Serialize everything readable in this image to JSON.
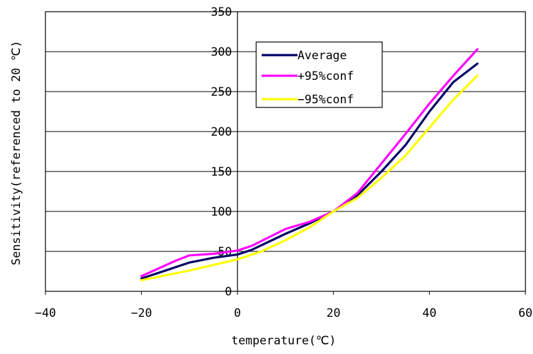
{
  "chart_data": {
    "type": "line",
    "title": "",
    "xlabel": "temperature(℃)",
    "ylabel": "Sensitivity(referenced to 20 ℃)",
    "xlim": [
      -40,
      60
    ],
    "ylim": [
      0,
      350
    ],
    "x_ticks": [
      -40,
      -20,
      0,
      20,
      40,
      60
    ],
    "y_ticks": [
      0,
      50,
      100,
      150,
      200,
      250,
      300,
      350
    ],
    "x_tick_labels": [
      "−40",
      "−20",
      "0",
      "20",
      "40",
      "60"
    ],
    "y_tick_labels": [
      "0",
      "50",
      "100",
      "150",
      "200",
      "250",
      "300",
      "350"
    ],
    "grid": "horizontal",
    "legend_position": "top-center",
    "series": [
      {
        "name": "Average",
        "color": "#000066",
        "x": [
          -20,
          -15,
          -10,
          -5,
          0,
          3,
          10,
          15,
          20,
          25,
          30,
          35,
          40,
          45,
          50
        ],
        "y": [
          16,
          26,
          36,
          42,
          46,
          52,
          72,
          85,
          100,
          120,
          150,
          183,
          225,
          262,
          285
        ]
      },
      {
        "name": "+95%conf",
        "color": "#ff00ff",
        "x": [
          -20,
          -13,
          -10,
          -5,
          0,
          3,
          10,
          15,
          20,
          25,
          30,
          35,
          40,
          45,
          50
        ],
        "y": [
          19,
          38,
          45,
          47,
          51,
          57,
          78,
          87,
          100,
          123,
          160,
          197,
          235,
          270,
          303
        ]
      },
      {
        "name": "−95%conf",
        "color": "#ffff00",
        "x": [
          -20,
          -10,
          0,
          5,
          10,
          15,
          20,
          25,
          30,
          35,
          40,
          45,
          50
        ],
        "y": [
          14,
          26,
          40,
          50,
          64,
          80,
          100,
          117,
          142,
          170,
          205,
          240,
          270
        ]
      }
    ]
  }
}
